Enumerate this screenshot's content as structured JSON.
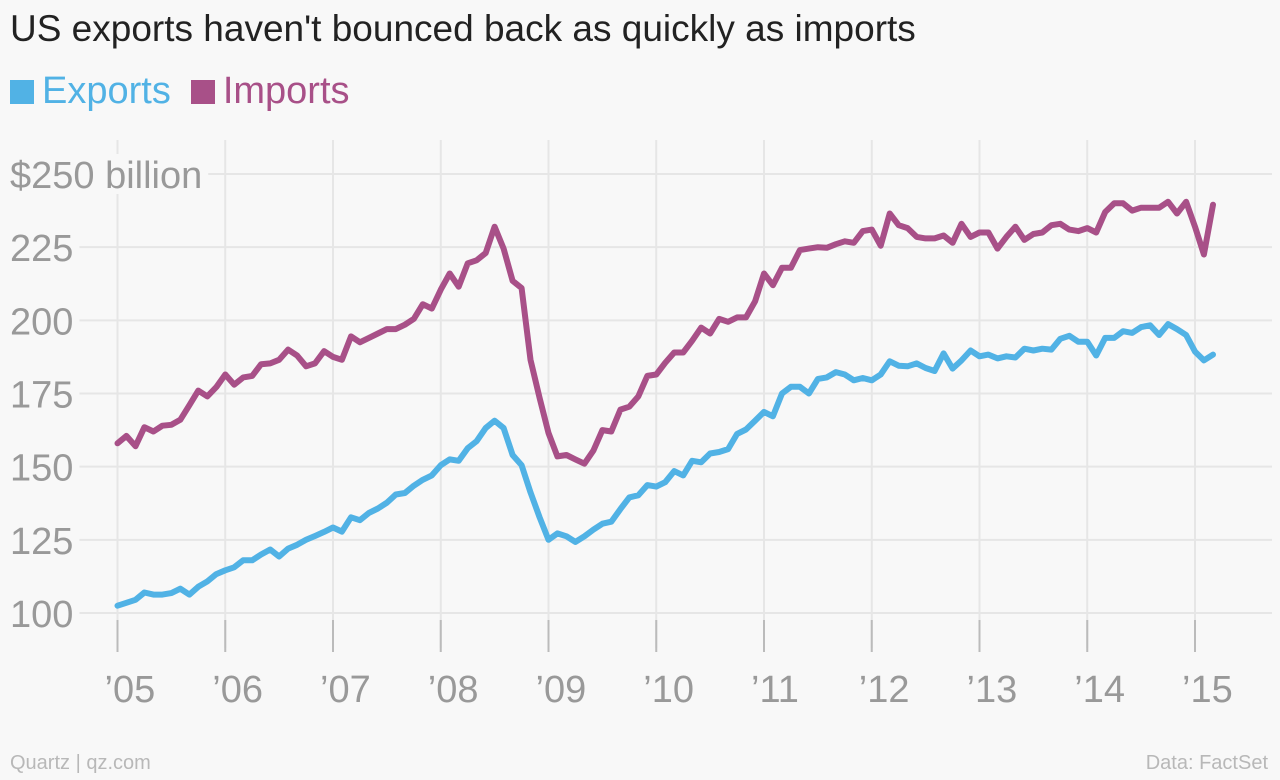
{
  "chart_data": {
    "type": "line",
    "title": "US exports haven't bounced back as quickly as imports",
    "ylabel": "",
    "xlabel": "",
    "ylim": [
      100,
      250
    ],
    "y_ticks": [
      100,
      125,
      150,
      175,
      200,
      225,
      250
    ],
    "y_tick_labels": [
      "100",
      "125",
      "150",
      "175",
      "200",
      "225",
      "$250 billion"
    ],
    "x_ticks": [
      2005,
      2006,
      2007,
      2008,
      2009,
      2010,
      2011,
      2012,
      2013,
      2014,
      2015
    ],
    "x_tick_labels": [
      "’05",
      "’06",
      "’07",
      "’08",
      "’09",
      "’10",
      "’11",
      "’12",
      "’13",
      "’14",
      "’15"
    ],
    "xlim": [
      2004.85,
      2016.0
    ],
    "grid": true,
    "legend_position": "top-left",
    "series": [
      {
        "name": "Exports",
        "color": "#51b2e5",
        "points": [
          [
            2005.0,
            102.5
          ],
          [
            2005.083,
            103.5
          ],
          [
            2005.167,
            104.5
          ],
          [
            2005.25,
            107.0
          ],
          [
            2005.333,
            106.3
          ],
          [
            2005.417,
            106.3
          ],
          [
            2005.5,
            106.8
          ],
          [
            2005.583,
            108.3
          ],
          [
            2005.667,
            106.3
          ],
          [
            2005.75,
            109.0
          ],
          [
            2005.833,
            110.8
          ],
          [
            2005.917,
            113.3
          ],
          [
            2006.0,
            114.6
          ],
          [
            2006.083,
            115.6
          ],
          [
            2006.167,
            118.0
          ],
          [
            2006.25,
            118.0
          ],
          [
            2006.333,
            120.0
          ],
          [
            2006.417,
            121.7
          ],
          [
            2006.5,
            119.3
          ],
          [
            2006.583,
            122.0
          ],
          [
            2006.667,
            123.3
          ],
          [
            2006.75,
            125.0
          ],
          [
            2006.833,
            126.3
          ],
          [
            2006.917,
            127.7
          ],
          [
            2007.0,
            129.2
          ],
          [
            2007.083,
            127.8
          ],
          [
            2007.167,
            132.7
          ],
          [
            2007.25,
            131.7
          ],
          [
            2007.333,
            134.2
          ],
          [
            2007.417,
            135.7
          ],
          [
            2007.5,
            137.7
          ],
          [
            2007.583,
            140.5
          ],
          [
            2007.667,
            141.0
          ],
          [
            2007.75,
            143.5
          ],
          [
            2007.833,
            145.5
          ],
          [
            2007.917,
            147.0
          ],
          [
            2008.0,
            150.5
          ],
          [
            2008.083,
            152.5
          ],
          [
            2008.167,
            152.0
          ],
          [
            2008.25,
            156.3
          ],
          [
            2008.333,
            158.7
          ],
          [
            2008.417,
            163.2
          ],
          [
            2008.5,
            165.7
          ],
          [
            2008.583,
            163.2
          ],
          [
            2008.667,
            154.0
          ],
          [
            2008.75,
            150.5
          ],
          [
            2008.833,
            141.2
          ],
          [
            2008.917,
            132.7
          ],
          [
            2009.0,
            125.0
          ],
          [
            2009.083,
            127.2
          ],
          [
            2009.167,
            126.2
          ],
          [
            2009.25,
            124.3
          ],
          [
            2009.333,
            126.2
          ],
          [
            2009.417,
            128.5
          ],
          [
            2009.5,
            130.5
          ],
          [
            2009.583,
            131.2
          ],
          [
            2009.667,
            135.5
          ],
          [
            2009.75,
            139.5
          ],
          [
            2009.833,
            140.2
          ],
          [
            2009.917,
            143.7
          ],
          [
            2010.0,
            143.2
          ],
          [
            2010.083,
            144.7
          ],
          [
            2010.167,
            148.5
          ],
          [
            2010.25,
            147.0
          ],
          [
            2010.333,
            152.0
          ],
          [
            2010.417,
            151.5
          ],
          [
            2010.5,
            154.5
          ],
          [
            2010.583,
            155.0
          ],
          [
            2010.667,
            156.0
          ],
          [
            2010.75,
            161.2
          ],
          [
            2010.833,
            162.7
          ],
          [
            2010.917,
            165.7
          ],
          [
            2011.0,
            168.7
          ],
          [
            2011.083,
            167.2
          ],
          [
            2011.167,
            175.0
          ],
          [
            2011.25,
            177.3
          ],
          [
            2011.333,
            177.3
          ],
          [
            2011.417,
            175.0
          ],
          [
            2011.5,
            180.0
          ],
          [
            2011.583,
            180.5
          ],
          [
            2011.667,
            182.3
          ],
          [
            2011.75,
            181.5
          ],
          [
            2011.833,
            179.5
          ],
          [
            2011.917,
            180.3
          ],
          [
            2012.0,
            179.5
          ],
          [
            2012.083,
            181.5
          ],
          [
            2012.167,
            186.0
          ],
          [
            2012.25,
            184.5
          ],
          [
            2012.333,
            184.3
          ],
          [
            2012.417,
            185.3
          ],
          [
            2012.5,
            183.7
          ],
          [
            2012.583,
            182.7
          ],
          [
            2012.667,
            188.7
          ],
          [
            2012.75,
            183.5
          ],
          [
            2012.833,
            186.3
          ],
          [
            2012.917,
            189.7
          ],
          [
            2013.0,
            187.7
          ],
          [
            2013.083,
            188.3
          ],
          [
            2013.167,
            187.0
          ],
          [
            2013.25,
            187.7
          ],
          [
            2013.333,
            187.3
          ],
          [
            2013.417,
            190.3
          ],
          [
            2013.5,
            189.7
          ],
          [
            2013.583,
            190.3
          ],
          [
            2013.667,
            190.0
          ],
          [
            2013.75,
            193.7
          ],
          [
            2013.833,
            194.7
          ],
          [
            2013.917,
            192.7
          ],
          [
            2014.0,
            192.7
          ],
          [
            2014.083,
            188.0
          ],
          [
            2014.167,
            194.0
          ],
          [
            2014.25,
            194.0
          ],
          [
            2014.333,
            196.3
          ],
          [
            2014.417,
            195.7
          ],
          [
            2014.5,
            197.7
          ],
          [
            2014.583,
            198.3
          ],
          [
            2014.667,
            195.0
          ],
          [
            2014.75,
            198.7
          ],
          [
            2014.833,
            197.0
          ],
          [
            2014.917,
            195.0
          ],
          [
            2015.0,
            189.3
          ],
          [
            2015.083,
            186.3
          ],
          [
            2015.167,
            188.3
          ]
        ]
      },
      {
        "name": "Imports",
        "color": "#a85088",
        "points": [
          [
            2005.0,
            158.0
          ],
          [
            2005.083,
            160.5
          ],
          [
            2005.167,
            157.0
          ],
          [
            2005.25,
            163.5
          ],
          [
            2005.333,
            162.0
          ],
          [
            2005.417,
            164.0
          ],
          [
            2005.5,
            164.3
          ],
          [
            2005.583,
            166.0
          ],
          [
            2005.667,
            171.0
          ],
          [
            2005.75,
            176.0
          ],
          [
            2005.833,
            174.0
          ],
          [
            2005.917,
            177.2
          ],
          [
            2006.0,
            181.5
          ],
          [
            2006.083,
            178.0
          ],
          [
            2006.167,
            180.5
          ],
          [
            2006.25,
            181.0
          ],
          [
            2006.333,
            185.0
          ],
          [
            2006.417,
            185.3
          ],
          [
            2006.5,
            186.5
          ],
          [
            2006.583,
            190.0
          ],
          [
            2006.667,
            188.0
          ],
          [
            2006.75,
            184.3
          ],
          [
            2006.833,
            185.3
          ],
          [
            2006.917,
            189.5
          ],
          [
            2007.0,
            187.5
          ],
          [
            2007.083,
            186.5
          ],
          [
            2007.167,
            194.5
          ],
          [
            2007.25,
            192.5
          ],
          [
            2007.333,
            194.0
          ],
          [
            2007.417,
            195.5
          ],
          [
            2007.5,
            197.0
          ],
          [
            2007.583,
            197.0
          ],
          [
            2007.667,
            198.5
          ],
          [
            2007.75,
            200.5
          ],
          [
            2007.833,
            205.5
          ],
          [
            2007.917,
            204.0
          ],
          [
            2008.0,
            210.5
          ],
          [
            2008.083,
            216.0
          ],
          [
            2008.167,
            211.5
          ],
          [
            2008.25,
            219.5
          ],
          [
            2008.333,
            220.5
          ],
          [
            2008.417,
            223.0
          ],
          [
            2008.5,
            232.0
          ],
          [
            2008.583,
            224.5
          ],
          [
            2008.667,
            213.5
          ],
          [
            2008.75,
            211.0
          ],
          [
            2008.833,
            186.5
          ],
          [
            2008.917,
            173.5
          ],
          [
            2009.0,
            161.5
          ],
          [
            2009.083,
            153.5
          ],
          [
            2009.167,
            154.0
          ],
          [
            2009.25,
            152.5
          ],
          [
            2009.333,
            151.0
          ],
          [
            2009.417,
            155.5
          ],
          [
            2009.5,
            162.5
          ],
          [
            2009.583,
            162.0
          ],
          [
            2009.667,
            169.5
          ],
          [
            2009.75,
            170.5
          ],
          [
            2009.833,
            174.0
          ],
          [
            2009.917,
            181.0
          ],
          [
            2010.0,
            181.5
          ],
          [
            2010.083,
            185.5
          ],
          [
            2010.167,
            189.0
          ],
          [
            2010.25,
            189.0
          ],
          [
            2010.333,
            193.0
          ],
          [
            2010.417,
            197.5
          ],
          [
            2010.5,
            195.5
          ],
          [
            2010.583,
            200.5
          ],
          [
            2010.667,
            199.5
          ],
          [
            2010.75,
            201.0
          ],
          [
            2010.833,
            201.0
          ],
          [
            2010.917,
            206.5
          ],
          [
            2011.0,
            216.0
          ],
          [
            2011.083,
            212.0
          ],
          [
            2011.167,
            218.0
          ],
          [
            2011.25,
            218.0
          ],
          [
            2011.333,
            224.0
          ],
          [
            2011.417,
            224.5
          ],
          [
            2011.5,
            225.0
          ],
          [
            2011.583,
            224.8
          ],
          [
            2011.667,
            226.0
          ],
          [
            2011.75,
            227.0
          ],
          [
            2011.833,
            226.5
          ],
          [
            2011.917,
            230.5
          ],
          [
            2012.0,
            231.0
          ],
          [
            2012.083,
            225.5
          ],
          [
            2012.167,
            236.5
          ],
          [
            2012.25,
            232.5
          ],
          [
            2012.333,
            231.5
          ],
          [
            2012.417,
            228.5
          ],
          [
            2012.5,
            228.0
          ],
          [
            2012.583,
            228.0
          ],
          [
            2012.667,
            229.0
          ],
          [
            2012.75,
            226.5
          ],
          [
            2012.833,
            233.0
          ],
          [
            2012.917,
            228.5
          ],
          [
            2013.0,
            230.0
          ],
          [
            2013.083,
            230.0
          ],
          [
            2013.167,
            224.5
          ],
          [
            2013.25,
            228.5
          ],
          [
            2013.333,
            232.0
          ],
          [
            2013.417,
            227.5
          ],
          [
            2013.5,
            229.5
          ],
          [
            2013.583,
            230.0
          ],
          [
            2013.667,
            232.5
          ],
          [
            2013.75,
            233.0
          ],
          [
            2013.833,
            231.0
          ],
          [
            2013.917,
            230.5
          ],
          [
            2014.0,
            231.5
          ],
          [
            2014.083,
            230.0
          ],
          [
            2014.167,
            237.0
          ],
          [
            2014.25,
            240.0
          ],
          [
            2014.333,
            240.0
          ],
          [
            2014.417,
            237.5
          ],
          [
            2014.5,
            238.5
          ],
          [
            2014.583,
            238.5
          ],
          [
            2014.667,
            238.5
          ],
          [
            2014.75,
            240.5
          ],
          [
            2014.833,
            236.5
          ],
          [
            2014.917,
            240.5
          ],
          [
            2015.0,
            232.0
          ],
          [
            2015.083,
            222.5
          ],
          [
            2015.167,
            239.5
          ]
        ]
      }
    ]
  },
  "footer": {
    "source_left": "Quartz | qz.com",
    "source_right": "Data: FactSet"
  },
  "colors": {
    "exports": "#51b2e5",
    "imports": "#a85088",
    "grid": "#e6e6e6",
    "tick_label": "#999999"
  }
}
